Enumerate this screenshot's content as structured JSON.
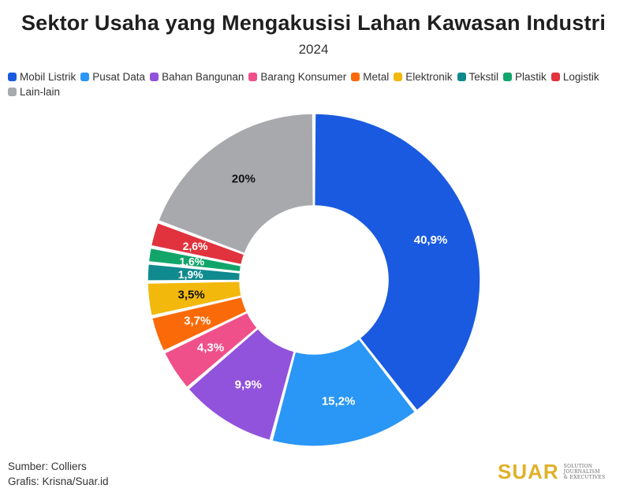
{
  "title": "Sektor Usaha yang Mengakusisi Lahan Kawasan Industri",
  "subtitle": "2024",
  "chart_data": {
    "type": "pie",
    "title": "Sektor Usaha yang Mengakusisi Lahan Kawasan Industri",
    "subtitle": "2024",
    "legend_position": "top-left",
    "categories": [
      "Mobil Listrik",
      "Pusat Data",
      "Bahan Bangunan",
      "Barang Konsumer",
      "Metal",
      "Elektronik",
      "Tekstil",
      "Plastik",
      "Logistik",
      "Lain-lain"
    ],
    "values": [
      40.9,
      15.2,
      9.9,
      4.3,
      3.7,
      3.5,
      1.9,
      1.6,
      2.6,
      20
    ],
    "labels": [
      "40,9%",
      "15,2%",
      "9,9%",
      "4,3%",
      "3,7%",
      "3,5%",
      "1,9%",
      "1,6%",
      "2,6%",
      "20%"
    ],
    "colors": [
      "#1a5ae0",
      "#2a96f5",
      "#9152dc",
      "#f0508a",
      "#fb6a08",
      "#f2b80c",
      "#0f8a8f",
      "#12a56a",
      "#e0333d",
      "#a8a9ad"
    ],
    "label_colors": [
      "#ffffff",
      "#ffffff",
      "#ffffff",
      "#ffffff",
      "#ffffff",
      "#111111",
      "#ffffff",
      "#ffffff",
      "#ffffff",
      "#111111"
    ],
    "donut": true
  },
  "footer": {
    "source": "Sumber: Colliers",
    "credit": "Grafis: Krisna/Suar.id"
  },
  "brand": {
    "name": "SUAR",
    "tagline_1": "SOLUTION JOURNALISM",
    "tagline_2": "& EXECUTIVES"
  }
}
